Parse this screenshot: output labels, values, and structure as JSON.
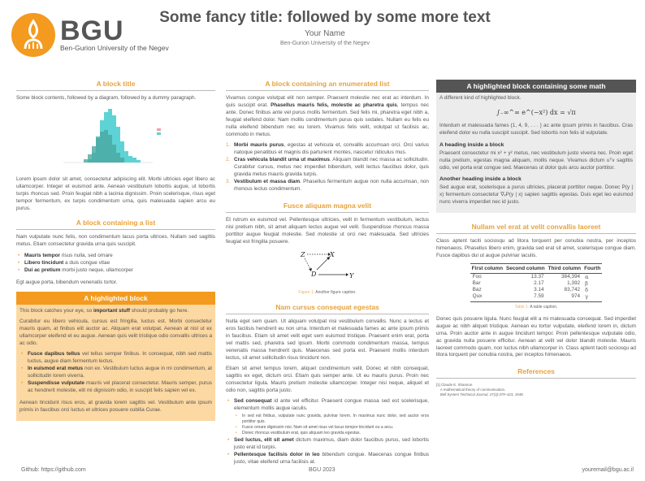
{
  "header": {
    "logo_text": "BGU",
    "logo_sub": "Ben-Gurion University of the Negev",
    "title": "Some fancy title: followed by some more text",
    "author": "Your Name",
    "institute": "Ben-Gurion University of the Negev"
  },
  "col1": {
    "b1_title": "A block title",
    "b1_intro": "Some block contents, followed by a diagram, followed by a dummy paragraph.",
    "b1_para": "Lorem ipsum dolor sit amet, consectetur adipiscing elit. Morbi ultricies eget libero ac ullamcorper. Integer et euismod ante. Aenean vestibulum lobortis augue, ut lobortis turpis rhoncus sed. Proin feugiat nibh a lacinia dignissim. Proin scelerisque, risus eget tempor fermentum, ex turpis condimentum urna, quis malesuada sapien arcu eu purus.",
    "b2_title": "A block containing a list",
    "b2_para": "Nam vulputate nunc felis, non condimentum lacus porta ultrices. Nullam sed sagittis metus. Etiam consectetur gravida urna quis suscipit.",
    "b2_list": [
      {
        "b": "Mauris tempor",
        "t": " risus nulla, sed ornare"
      },
      {
        "b": "Libero tincidunt",
        "t": " a duis congue vitae"
      },
      {
        "b": "Dui ac pretium",
        "t": " morbi justo neque, ullamcorper"
      }
    ],
    "b2_after": "Egt augue porta, bibendum venenatis tortor.",
    "hl_title": "A highlighted block",
    "hl_p1a": "This block catches your eye, so ",
    "hl_p1b": "important stuff",
    "hl_p1c": " should probably go here.",
    "hl_p2": "Curabitur eu libero vehicula, cursus est fringilla, luctus est. Morbi consectetur mauris quam, at finibus elit auctor ac. Aliquam erat volutpat. Aenean at nisl ut ex ullamcorper eleifend et eu augue. Aenean quis velit tristique odio convallis ultrices a ac odio.",
    "hl_list": [
      {
        "b": "Fusce dapibus tellus",
        "t": " vel tellus semper finibus. In consequat, nibh sed mattis luctus, augue diam fermentum lectus."
      },
      {
        "b": "In euismod erat metus",
        "t": " non ex. Vestibulum luctus augue in mi condimentum, at sollicitudin lorem viverra."
      },
      {
        "b": "Suspendisse vulputate",
        "t": " mauris vel placerat consectetur. Mauris semper, purus ac hendrerit molestie, elit mi dignissim odio, in suscipit felis sapien vel ex."
      }
    ],
    "hl_p3": "Aenean tincidunt risus eros, at gravida lorem sagittis vel. Vestibulum ante ipsum primis in faucibus orci luctus et ultrices posuere cubilia Curae."
  },
  "col2": {
    "b1_title": "A block containing an enumerated list",
    "b1_pa": "Vivamus congue volutpat elit non semper. Praesent molestie nec erat ac interdum. In quis suscipit erat. ",
    "b1_pb": "Phasellus mauris felis, molestie ac pharetra quis",
    "b1_pc": ", tempus nec ante. Donec finibus ante vel purus mollis fermentum. Sed felis mi, pharetra eget nibh a, feugiat eleifend dolor. Nam mollis condimentum purus quis sodales. Nullam eu felis eu nulla eleifend bibendum nec eu lorem. Vivamus felis velit, volutpat ut facilisis ac, commodo in metus.",
    "enum": [
      {
        "b": "Morbi mauris purus",
        "t": ", egestas at vehicula et, convallis accumsan orci. Orci varius natoque penatibus et magnis dis parturient montes, nascetur ridiculus mus."
      },
      {
        "b": "Cras vehicula blandit urna ut maximus",
        "t": ". Aliquam blandit nec massa ac sollicitudin. Curabitur cursus, metus nec imperdiet bibendum, velit lectus faucibus dolor, quis gravida metus mauris gravida turpis."
      },
      {
        "b": "Vestibulum et massa diam",
        "t": ". Phasellus fermentum augue non nulla accumsan, non rhoncus lectus condimentum."
      }
    ],
    "b2_title": "Fusce aliquam magna velit",
    "b2_para": "Et rutrum ex euismod vel. Pellentesque ultricies, velit in fermentum vestibulum, lectus nisi pretium nibh, sit amet aliquam lectus augue vel velit. Suspendisse rhoncus massa porttitor augue feugiat molestie. Sed molestie ut orci nec malesuada. Sed ultricies feugiat est fringilla posuere.",
    "diagram": {
      "z": "Z",
      "x": "X",
      "d": "D",
      "y": "Y",
      "sub": "t"
    },
    "fig_label": "Figure 1:",
    "fig_caption": "Another figure caption.",
    "b3_title": "Nam cursus consequat egestas",
    "b3_p1": "Nulla eget sem quam. Ut aliquam volutpat nisi vestibulum convallis. Nunc a lectus et eros facilisis hendrerit eu non urna. Interdum et malesuada fames ac ante ipsum primis in faucibus. Etiam sit amet velit eget sem euismod tristique. Praesent enim erat, porta vel mattis sed, pharetra sed ipsum. Morbi commodo condimentum massa, tempus venenatis massa hendrerit quis. Maecenas sed porta est. Praesent mollis interdum lectus, sit amet sollicitudin risus tincidunt non.",
    "b3_p2": "Etiam sit amet tempus lorem, aliquet condimentum velit. Donec et nibh consequat, sagittis ex eget, dictum orci. Etiam quis semper ante. Ut eu mauris purus. Proin nec consectetur ligula. Mauris pretium molestie ullamcorper. Integer nisi neque, aliquet et odio non, sagittis porta justo.",
    "l1b": "Sed consequat",
    "l1t": " id ante vel efficitur. Praesent congue massa sed est scelerisque, elementum mollis augue iaculis.",
    "sub": [
      "In sed est finibus, vulputate nunc gravida, pulvinar lorem. In maximus nunc dolor, sed auctor eros porttitor quis.",
      "Fusce ornare dignissim nisi. Nam sit amet risus vel lacus tempor tincidunt eu a arcu.",
      "Donec rhoncus vestibulum erat, quis aliquam leo gravida egestas."
    ],
    "l2b": "Sed luctus, elit sit amet",
    "l2t": " dictum maximus, diam dolor faucibus purus, sed lobortis justo erat id turpis.",
    "l3b": "Pellentesque facilisis dolor in leo",
    "l3t": " bibendum congue. Maecenas congue finibus justo, vitae eleifend urna facilisis at."
  },
  "col3": {
    "hm_title": "A highlighted block containing some math",
    "hm_intro": "A different kind of highlighted block.",
    "math": "∫₋∞^∞ e^(−x²) dx = √π",
    "hm_p1": "Interdum et malesuada fames {1, 4, 9, . . . } ac ante ipsum primis in faucibus. Cras eleifend dolor eu nulla suscipit suscipit. Sed lobortis non felis id vulputate.",
    "h1": "A heading inside a block",
    "hm_p2": "Praesent consectetur mi x² + y² metus, nec vestibulum justo viverra nec. Proin eget nulla pretium, egestas magna aliquam, mollis neque. Vivamus dictum uᵀv sagittis odio, vel porta erat congue sed. Maecenas ut dolor quis arcu auctor porttitor.",
    "h2": "Another heading inside a block",
    "hm_p3": "Sed augue erat, scelerisque a purus ultricies, placerat porttitor neque. Donec P(y | x) fermentum consectetur ∇ₓP(y | x) sapien sagittis egestas. Duis eget leo euismod nunc viverra imperdiet nec id justo.",
    "b2_title": "Nullam vel erat at velit convallis laoreet",
    "b2_p1": "Class aptent taciti sociosqu ad litora torquent per conubia nostra, per inceptos himenaeos. Phasellus libero enim, gravida sed erat sit amet, scelerisque congue diam. Fusce dapibus dui ut augue pulvinar iaculis.",
    "table": {
      "headers": [
        "First column",
        "Second column",
        "Third column",
        "Fourth"
      ],
      "rows": [
        [
          "Foo",
          "13.37",
          "384,394",
          "α"
        ],
        [
          "Bar",
          "2.17",
          "1,392",
          "β"
        ],
        [
          "Baz",
          "3.14",
          "83,742",
          "δ"
        ],
        [
          "Qux",
          "7.59",
          "974",
          "γ"
        ]
      ]
    },
    "tab_label": "Table 1:",
    "tab_caption": "A table caption.",
    "b2_p2": "Donec quis posuere ligula. Nunc feugiat elit a mi malesuada consequat. Sed imperdiet augue ac nibh aliquet tristique. Aenean eu tortor vulputate, eleifend lorem in, dictum urna. Proin auctor ante in augue tincidunt tempor. Proin pellentesque vulputate odio, ac gravida nulla posuere efficitur. Aenean at velit vel dolor blandit molestie. Mauris laoreet commodo quam, non luctus nibh ullamcorper in. Class aptent taciti sociosqu ad litora torquent per conubia nostra, per inceptos himenaeos.",
    "ref_title": "References",
    "ref": {
      "num": "[1]",
      "author": "Claude E. Shannon.",
      "title": "A mathematical theory of communication.",
      "journal": "Bell System Technical Journal, 27(3):379–423, 1948."
    }
  },
  "footer": {
    "left": "Github: https://github.com",
    "center": "BGU 2023",
    "right": "youremail@bgu.ac.il"
  },
  "colors": {
    "accent": "#f39a1f",
    "title_orange": "#e8a23a",
    "highlight_bg": "#fcd8a2",
    "math_header": "#555555",
    "math_bg": "#ececec"
  }
}
